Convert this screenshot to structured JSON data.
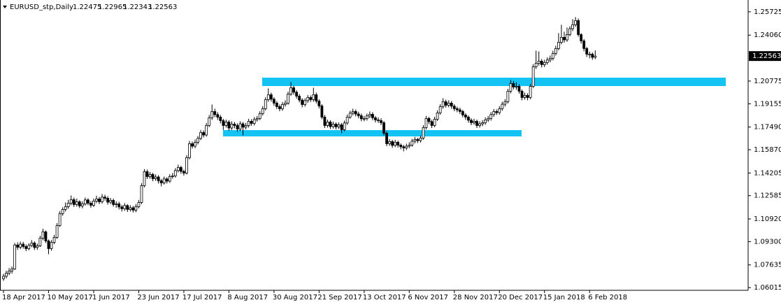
{
  "chart_data": {
    "type": "candlestick",
    "symbol": "EURUSD_stp,Daily",
    "up_color": "#ffffff",
    "down_color": "#000000",
    "zone_color": "#12c3f4",
    "ylim": [
      1.0582,
      1.2632
    ],
    "yticks": [
      1.25725,
      {
        "value": 1.2406,
        "label": "1.24060"
      },
      1.20775,
      1.19155,
      {
        "value": 1.1749,
        "label": "1.17490"
      },
      {
        "value": 1.1587,
        "label": "1.15870"
      },
      1.14205,
      1.12585,
      {
        "value": 1.1092,
        "label": "1.10920"
      },
      {
        "value": 1.093,
        "label": "1.09300"
      },
      1.07635,
      1.06015
    ],
    "zones": [
      {
        "low": 1.2042,
        "high": 1.2102
      },
      {
        "low": 1.1682,
        "high": 1.1727
      }
    ],
    "categories": [
      "18 Apr 2017",
      null,
      null,
      null,
      null,
      null,
      null,
      null,
      null,
      null,
      null,
      null,
      null,
      null,
      null,
      null,
      "10 May 2017",
      null,
      null,
      null,
      null,
      null,
      null,
      null,
      null,
      null,
      null,
      null,
      null,
      null,
      null,
      null,
      "1 Jun 2017",
      null,
      null,
      null,
      null,
      null,
      null,
      null,
      null,
      null,
      null,
      null,
      null,
      null,
      null,
      null,
      "23 Jun 2017",
      null,
      null,
      null,
      null,
      null,
      null,
      null,
      null,
      null,
      null,
      null,
      null,
      null,
      null,
      null,
      "17 Jul 2017",
      null,
      null,
      null,
      null,
      null,
      null,
      null,
      null,
      null,
      null,
      null,
      null,
      null,
      null,
      null,
      "8 Aug 2017",
      null,
      null,
      null,
      null,
      null,
      null,
      null,
      null,
      null,
      null,
      null,
      null,
      null,
      null,
      null,
      "30 Aug 2017",
      null,
      null,
      null,
      null,
      null,
      null,
      null,
      null,
      null,
      null,
      null,
      null,
      null,
      null,
      null,
      "21 Sep 2017",
      null,
      null,
      null,
      null,
      null,
      null,
      null,
      null,
      null,
      null,
      null,
      null,
      null,
      null,
      null,
      "13 Oct 2017",
      null,
      null,
      null,
      null,
      null,
      null,
      null,
      null,
      null,
      null,
      null,
      null,
      null,
      null,
      null,
      "6 Nov 2017",
      null,
      null,
      null,
      null,
      null,
      null,
      null,
      null,
      null,
      null,
      null,
      null,
      null,
      null,
      null,
      "28 Nov 2017",
      null,
      null,
      null,
      null,
      null,
      null,
      null,
      null,
      null,
      null,
      null,
      null,
      null,
      null,
      null,
      "20 Dec 2017",
      null,
      null,
      null,
      null,
      null,
      null,
      null,
      null,
      null,
      null,
      null,
      null,
      null,
      null,
      null,
      "15 Jan 2018",
      null,
      null,
      null,
      null,
      null,
      null,
      null,
      null,
      null,
      null,
      null,
      null,
      null,
      null,
      null,
      "6 Feb 2018",
      null,
      null
    ],
    "open": [
      1.0665,
      1.0682,
      1.0705,
      1.072,
      1.0735,
      1.0906,
      1.089,
      1.0912,
      1.0895,
      1.088,
      1.0903,
      1.092,
      1.0888,
      1.09,
      1.0955,
      1.1,
      1.0935,
      1.088,
      1.0925,
      1.096,
      1.1045,
      1.113,
      1.116,
      1.118,
      1.1205,
      1.123,
      1.1195,
      1.1215,
      1.1185,
      1.12,
      1.1228,
      1.1205,
      1.119,
      1.122,
      1.1235,
      1.1215,
      1.1248,
      1.124,
      1.1212,
      1.1225,
      1.1195,
      1.12,
      1.1178,
      1.1165,
      1.1188,
      1.116,
      1.1172,
      1.1155,
      1.118,
      1.121,
      1.133,
      1.143,
      1.1395,
      1.141,
      1.138,
      1.1392,
      1.1365,
      1.135,
      1.1378,
      1.1362,
      1.1395,
      1.14,
      1.1438,
      1.146,
      1.1432,
      1.142,
      1.153,
      1.163,
      1.1612,
      1.164,
      1.1668,
      1.171,
      1.1692,
      1.176,
      1.1815,
      1.186,
      1.1838,
      1.182,
      1.1795,
      1.176,
      1.1785,
      1.1742,
      1.177,
      1.176,
      1.1735,
      1.1772,
      1.1748,
      1.176,
      1.179,
      1.1775,
      1.1802,
      1.181,
      1.1845,
      1.188,
      1.1945,
      1.198,
      1.1948,
      1.192,
      1.1895,
      1.188,
      1.191,
      1.192,
      1.1985,
      1.203,
      1.1998,
      1.197,
      1.1942,
      1.191,
      1.1938,
      1.196,
      1.1945,
      1.198,
      1.1935,
      1.19,
      1.182,
      1.176,
      1.1785,
      1.1752,
      1.177,
      1.175,
      1.1765,
      1.173,
      1.1778,
      1.182,
      1.1848,
      1.186,
      1.1842,
      1.183,
      1.1808,
      1.181,
      1.1828,
      1.184,
      1.1815,
      1.18,
      1.1795,
      1.178,
      1.1705,
      1.163,
      1.1645,
      1.1618,
      1.164,
      1.162,
      1.1608,
      1.16,
      1.1612,
      1.162,
      1.1648,
      1.166,
      1.1652,
      1.167,
      1.1745,
      1.181,
      1.1788,
      1.176,
      1.1805,
      1.185,
      1.1895,
      1.193,
      1.1905,
      1.192,
      1.1898,
      1.188,
      1.1872,
      1.186,
      1.1835,
      1.182,
      1.1798,
      1.178,
      1.179,
      1.176,
      1.1772,
      1.178,
      1.18,
      1.181,
      1.1838,
      1.186,
      1.1852,
      1.188,
      1.1912,
      1.193,
      1.2005,
      1.206,
      1.2035,
      1.204,
      1.2005,
      1.196,
      1.1975,
      1.196,
      1.204,
      1.218,
      1.2205,
      1.222,
      1.2195,
      1.221,
      1.2228,
      1.224,
      1.2275,
      1.231,
      1.2355,
      1.239,
      1.2372,
      1.241,
      1.2452,
      1.248,
      1.251,
      1.241,
      1.2365,
      1.231,
      1.227,
      1.227,
      1.22475
    ],
    "high": [
      1.07,
      1.0722,
      1.0741,
      1.0752,
      1.092,
      1.0925,
      1.093,
      1.0928,
      1.091,
      1.0918,
      1.0941,
      1.0932,
      1.0915,
      1.0972,
      1.1022,
      1.101,
      1.0945,
      1.094,
      1.0978,
      1.1062,
      1.1148,
      1.1175,
      1.121,
      1.1228,
      1.126,
      1.1245,
      1.1238,
      1.1226,
      1.1218,
      1.1245,
      1.124,
      1.122,
      1.1238,
      1.1258,
      1.125,
      1.127,
      1.1265,
      1.1255,
      1.1242,
      1.1238,
      1.1218,
      1.1215,
      1.1192,
      1.1205,
      1.1198,
      1.119,
      1.1185,
      1.1198,
      1.1228,
      1.1348,
      1.1448,
      1.1445,
      1.1428,
      1.1422,
      1.141,
      1.1405,
      1.1378,
      1.1395,
      1.139,
      1.1412,
      1.142,
      1.1455,
      1.148,
      1.1472,
      1.1445,
      1.1548,
      1.165,
      1.1645,
      1.166,
      1.1685,
      1.1728,
      1.1725,
      1.1778,
      1.1835,
      1.191,
      1.188,
      1.1855,
      1.1835,
      1.1808,
      1.1802,
      1.1798,
      1.179,
      1.1785,
      1.1775,
      1.179,
      1.1785,
      1.1778,
      1.1808,
      1.1805,
      1.182,
      1.1828,
      1.1862,
      1.1898,
      1.1962,
      1.2025,
      1.1995,
      1.1962,
      1.1935,
      1.191,
      1.1928,
      1.194,
      1.2002,
      1.207,
      1.2045,
      1.2012,
      1.1985,
      1.1955,
      1.1955,
      1.1978,
      1.1975,
      1.203,
      1.1995,
      1.1948,
      1.1912,
      1.1835,
      1.1802,
      1.1798,
      1.1788,
      1.1782,
      1.1782,
      1.1778,
      1.1795,
      1.1838,
      1.1865,
      1.188,
      1.1875,
      1.1858,
      1.1845,
      1.1828,
      1.1845,
      1.186,
      1.1855,
      1.1828,
      1.1818,
      1.1812,
      1.1792,
      1.1718,
      1.1662,
      1.1658,
      1.1658,
      1.1652,
      1.1632,
      1.1622,
      1.163,
      1.164,
      1.1665,
      1.1678,
      1.1672,
      1.1688,
      1.1762,
      1.1828,
      1.1822,
      1.18,
      1.1822,
      1.1868,
      1.1912,
      1.1955,
      1.1945,
      1.194,
      1.1935,
      1.1912,
      1.1895,
      1.1888,
      1.1872,
      1.1848,
      1.1832,
      1.1812,
      1.1808,
      1.1802,
      1.179,
      1.1798,
      1.1818,
      1.1828,
      1.1855,
      1.1878,
      1.1875,
      1.1898,
      1.193,
      1.1948,
      1.2022,
      1.2085,
      1.2078,
      1.207,
      1.2055,
      1.2018,
      1.1995,
      1.199,
      1.2058,
      1.2198,
      1.2295,
      1.229,
      1.2235,
      1.223,
      1.2248,
      1.226,
      1.2295,
      1.233,
      1.242,
      1.248,
      1.243,
      1.246,
      1.247,
      1.252,
      1.2535,
      1.2525,
      1.242,
      1.2378,
      1.2322,
      1.2288,
      1.2282,
      1.22965
    ],
    "low": [
      1.065,
      1.0668,
      1.069,
      1.0702,
      1.0728,
      1.0872,
      1.0876,
      1.088,
      1.0862,
      1.0868,
      1.089,
      1.087,
      1.0872,
      1.0892,
      1.094,
      1.092,
      1.084,
      1.0865,
      1.0912,
      1.095,
      1.1035,
      1.1115,
      1.1145,
      1.1165,
      1.119,
      1.1178,
      1.118,
      1.117,
      1.1168,
      1.1188,
      1.119,
      1.1172,
      1.1178,
      1.1205,
      1.1198,
      1.1202,
      1.1222,
      1.1195,
      1.1198,
      1.118,
      1.1172,
      1.116,
      1.1145,
      1.115,
      1.1142,
      1.1145,
      1.1138,
      1.114,
      1.1168,
      1.1198,
      1.1318,
      1.1378,
      1.138,
      1.1362,
      1.1365,
      1.1345,
      1.1325,
      1.1338,
      1.1345,
      1.135,
      1.138,
      1.1388,
      1.1425,
      1.1415,
      1.1402,
      1.141,
      1.1518,
      1.1595,
      1.1598,
      1.1625,
      1.1655,
      1.1675,
      1.168,
      1.1748,
      1.18,
      1.182,
      1.18,
      1.1775,
      1.1728,
      1.1745,
      1.1722,
      1.1728,
      1.174,
      1.1715,
      1.172,
      1.169,
      1.1732,
      1.1745,
      1.1758,
      1.176,
      1.1788,
      1.1798,
      1.1832,
      1.1868,
      1.193,
      1.193,
      1.19,
      1.1878,
      1.1862,
      1.1865,
      1.1895,
      1.1908,
      1.1972,
      1.198,
      1.1952,
      1.1925,
      1.189,
      1.1895,
      1.1922,
      1.1928,
      1.193,
      1.1918,
      1.1882,
      1.1805,
      1.1742,
      1.1745,
      1.1735,
      1.1738,
      1.1732,
      1.1735,
      1.1705,
      1.1718,
      1.1765,
      1.1808,
      1.1832,
      1.1825,
      1.1812,
      1.179,
      1.179,
      1.1795,
      1.1812,
      1.1798,
      1.1782,
      1.1778,
      1.1762,
      1.169,
      1.1612,
      1.1615,
      1.16,
      1.1605,
      1.1602,
      1.159,
      1.1575,
      1.1585,
      1.1598,
      1.1608,
      1.1632,
      1.1635,
      1.1638,
      1.1658,
      1.1732,
      1.177,
      1.1742,
      1.1748,
      1.1792,
      1.1838,
      1.188,
      1.1888,
      1.189,
      1.188,
      1.1862,
      1.1855,
      1.1842,
      1.1818,
      1.18,
      1.178,
      1.1762,
      1.1765,
      1.1742,
      1.1745,
      1.1755,
      1.1765,
      1.1785,
      1.1795,
      1.1822,
      1.1835,
      1.1838,
      1.1865,
      1.1895,
      1.1918,
      1.199,
      1.2018,
      1.2015,
      1.1988,
      1.194,
      1.1945,
      1.194,
      1.1948,
      1.2028,
      1.2165,
      1.2188,
      1.2175,
      1.2178,
      1.2195,
      1.2212,
      1.2225,
      1.226,
      1.2298,
      1.234,
      1.2352,
      1.2358,
      1.2398,
      1.2435,
      1.2465,
      1.2395,
      1.2345,
      1.229,
      1.225,
      1.224,
      1.223,
      1.22343
    ],
    "close": [
      1.0682,
      1.0705,
      1.072,
      1.0735,
      1.0906,
      1.089,
      1.0912,
      1.0895,
      1.088,
      1.0903,
      1.092,
      1.0888,
      1.09,
      1.0955,
      1.1,
      1.0935,
      1.088,
      1.0925,
      1.096,
      1.1045,
      1.113,
      1.116,
      1.118,
      1.1205,
      1.123,
      1.1195,
      1.1215,
      1.1185,
      1.12,
      1.1228,
      1.1205,
      1.119,
      1.122,
      1.1235,
      1.1215,
      1.1248,
      1.124,
      1.1212,
      1.1225,
      1.1195,
      1.12,
      1.1178,
      1.1165,
      1.1188,
      1.116,
      1.1172,
      1.1155,
      1.118,
      1.121,
      1.133,
      1.143,
      1.1395,
      1.141,
      1.138,
      1.1392,
      1.1365,
      1.135,
      1.1378,
      1.1362,
      1.1395,
      1.14,
      1.1438,
      1.146,
      1.1432,
      1.142,
      1.153,
      1.163,
      1.1612,
      1.164,
      1.1668,
      1.171,
      1.1692,
      1.176,
      1.1815,
      1.186,
      1.1838,
      1.182,
      1.1795,
      1.176,
      1.1785,
      1.1742,
      1.177,
      1.176,
      1.1735,
      1.1772,
      1.1748,
      1.176,
      1.179,
      1.1775,
      1.1802,
      1.181,
      1.1845,
      1.188,
      1.1945,
      1.198,
      1.1948,
      1.192,
      1.1895,
      1.188,
      1.191,
      1.192,
      1.1985,
      1.203,
      1.1998,
      1.197,
      1.1942,
      1.191,
      1.1938,
      1.196,
      1.1945,
      1.198,
      1.1935,
      1.19,
      1.182,
      1.176,
      1.1785,
      1.1752,
      1.177,
      1.175,
      1.1765,
      1.173,
      1.1778,
      1.182,
      1.1848,
      1.186,
      1.1842,
      1.183,
      1.1808,
      1.181,
      1.1828,
      1.184,
      1.1815,
      1.18,
      1.1795,
      1.178,
      1.1705,
      1.163,
      1.1645,
      1.1618,
      1.164,
      1.162,
      1.1608,
      1.16,
      1.1612,
      1.162,
      1.1648,
      1.166,
      1.1652,
      1.167,
      1.1745,
      1.181,
      1.1788,
      1.176,
      1.1805,
      1.185,
      1.1895,
      1.193,
      1.1905,
      1.192,
      1.1898,
      1.188,
      1.1872,
      1.186,
      1.1835,
      1.182,
      1.1798,
      1.178,
      1.179,
      1.176,
      1.1772,
      1.178,
      1.18,
      1.181,
      1.1838,
      1.186,
      1.1852,
      1.188,
      1.1912,
      1.193,
      1.2005,
      1.206,
      1.2035,
      1.204,
      1.2005,
      1.196,
      1.1975,
      1.196,
      1.204,
      1.218,
      1.2205,
      1.222,
      1.2195,
      1.221,
      1.2228,
      1.224,
      1.2275,
      1.231,
      1.2355,
      1.239,
      1.2372,
      1.241,
      1.2452,
      1.248,
      1.251,
      1.241,
      1.2365,
      1.231,
      1.227,
      1.227,
      1.2247,
      1.22563
    ]
  }
}
